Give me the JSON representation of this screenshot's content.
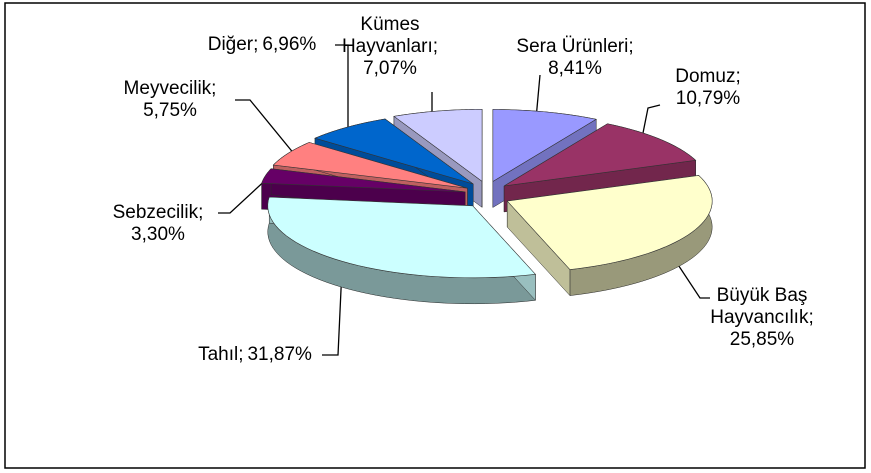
{
  "chart_data": {
    "type": "pie",
    "three_d": true,
    "exploded": true,
    "label_separator": ";",
    "categories": [
      "Sera Ürünleri",
      "Domuz",
      "Büyük Baş Hayvancılık",
      "Tahıl",
      "Sebzecilik",
      "Meyvecilik",
      "Diğer",
      "Kümes Hayvanları"
    ],
    "values": [
      8.41,
      10.79,
      25.85,
      31.87,
      3.3,
      5.75,
      6.96,
      7.07
    ],
    "value_labels": [
      "8,41%",
      "10,79%",
      "25,85%",
      "31,87%",
      "3,30%",
      "5,75%",
      "6,96%",
      "7,07%"
    ],
    "colors": [
      "#9999ff",
      "#993366",
      "#ffffcc",
      "#ccffff",
      "#660066",
      "#ff8080",
      "#0066cc",
      "#ccccff"
    ]
  }
}
